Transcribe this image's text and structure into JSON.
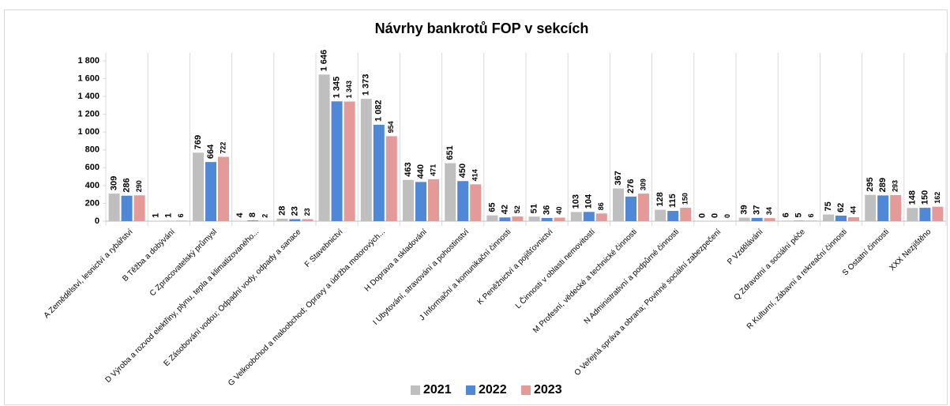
{
  "chart_data": {
    "type": "bar",
    "title": "Návrhy bankrotů FOP v sekcích",
    "categories": [
      "A Zemědělství, lesnictví a rybářství",
      "B Těžba a dobývání",
      "C Zpracovatelský průmysl",
      "D Výroba a rozvod elektřiny, plynu, tepla a klimatizovaného...",
      "E Zásobování vodou; Odpadní vody, odpady a sanace",
      "F Stavebnictví",
      "G Velkoobchod a maloobchod; Opravy a údržba motorových...",
      "H Doprava a skladování",
      "I Ubytování, stravování a pohostinství",
      "J Informační a komunikační činnosti",
      "K Peněžnictví a pojišťovnictví",
      "L Činnosti v oblasti nemovitostí",
      "M Profesní, vědecké a technické činnosti",
      "N Administrativní a podpůrné činnosti",
      "O Veřejná správa a obrana; Povinné sociální zabezpečení",
      "P Vzdělávání",
      "Q Zdravotní a sociální péče",
      "R Kulturní, zábavní a rekreační činnosti",
      "S Ostatní činnosti",
      "XXX Nezjištěno"
    ],
    "series": [
      {
        "name": "2021",
        "color": "#bfbfbf",
        "values": [
          309,
          1,
          769,
          4,
          28,
          1646,
          1373,
          463,
          651,
          65,
          51,
          103,
          367,
          128,
          0,
          39,
          6,
          75,
          295,
          148
        ],
        "value_labels": [
          "309",
          "1",
          "769",
          "4",
          "28",
          "1 646",
          "1 373",
          "463",
          "651",
          "65",
          "51",
          "103",
          "367",
          "128",
          "0",
          "39",
          "6",
          "75",
          "295",
          "148"
        ]
      },
      {
        "name": "2022",
        "color": "#4f88d6",
        "values": [
          286,
          1,
          664,
          8,
          23,
          1345,
          1082,
          440,
          450,
          42,
          36,
          104,
          276,
          115,
          0,
          37,
          5,
          62,
          289,
          150
        ],
        "value_labels": [
          "286",
          "1",
          "664",
          "8",
          "23",
          "1 345",
          "1 082",
          "440",
          "450",
          "42",
          "36",
          "104",
          "276",
          "115",
          "0",
          "37",
          "5",
          "62",
          "289",
          "150"
        ]
      },
      {
        "name": "2023",
        "color": "#e39a98",
        "values": [
          290,
          6,
          722,
          2,
          23,
          1343,
          954,
          471,
          414,
          52,
          40,
          86,
          309,
          150,
          0,
          34,
          6,
          44,
          293,
          162
        ],
        "value_labels": [
          "290",
          "6",
          "722",
          "2",
          "23",
          "1 343",
          "954",
          "471",
          "414",
          "52",
          "40",
          "86",
          "309",
          "150",
          "0",
          "34",
          "6",
          "44",
          "293",
          "162"
        ]
      }
    ],
    "ylim": [
      0,
      1800
    ],
    "yticks": [
      0,
      200,
      400,
      600,
      800,
      {
        "value": 1000,
        "label": "1 000"
      },
      {
        "value": 1200,
        "label": "1 200"
      },
      {
        "value": 1400,
        "label": "1 400"
      },
      {
        "value": 1600,
        "label": "1 600"
      },
      {
        "value": 1800,
        "label": "1 800"
      }
    ],
    "grid": false,
    "legend": "bottom"
  }
}
